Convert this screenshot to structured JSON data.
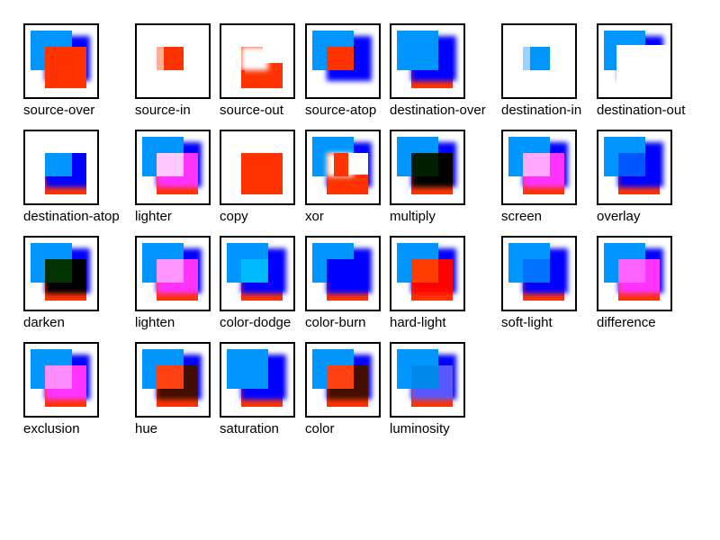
{
  "colors": {
    "blue": "#0095ff",
    "blur_blue": "#0000ff",
    "red": "#ff3300",
    "background": "#ffffff",
    "border": "#000000"
  },
  "operations": [
    {
      "name": "source-over",
      "mode": "normal",
      "clip": "none"
    },
    {
      "name": "source-in",
      "mode": "normal",
      "clip": "source-in"
    },
    {
      "name": "source-out",
      "mode": "normal",
      "clip": "source-out"
    },
    {
      "name": "source-atop",
      "mode": "normal",
      "clip": "source-atop"
    },
    {
      "name": "destination-over",
      "mode": "normal",
      "clip": "destination-over"
    },
    {
      "name": "destination-in",
      "mode": "normal",
      "clip": "destination-in"
    },
    {
      "name": "destination-out",
      "mode": "normal",
      "clip": "destination-out"
    },
    {
      "name": "destination-atop",
      "mode": "normal",
      "clip": "destination-atop"
    },
    {
      "name": "lighter",
      "mode": "plus-lighter",
      "clip": "none"
    },
    {
      "name": "copy",
      "mode": "normal",
      "clip": "copy"
    },
    {
      "name": "xor",
      "mode": "normal",
      "clip": "xor"
    },
    {
      "name": "multiply",
      "mode": "multiply",
      "clip": "none"
    },
    {
      "name": "screen",
      "mode": "screen",
      "clip": "none"
    },
    {
      "name": "overlay",
      "mode": "overlay",
      "clip": "none"
    },
    {
      "name": "darken",
      "mode": "darken",
      "clip": "none"
    },
    {
      "name": "lighten",
      "mode": "lighten",
      "clip": "none"
    },
    {
      "name": "color-dodge",
      "mode": "color-dodge",
      "clip": "none"
    },
    {
      "name": "color-burn",
      "mode": "color-burn",
      "clip": "none"
    },
    {
      "name": "hard-light",
      "mode": "hard-light",
      "clip": "none"
    },
    {
      "name": "soft-light",
      "mode": "soft-light",
      "clip": "none"
    },
    {
      "name": "difference",
      "mode": "difference",
      "clip": "none"
    },
    {
      "name": "exclusion",
      "mode": "exclusion",
      "clip": "none"
    },
    {
      "name": "hue",
      "mode": "hue",
      "clip": "none"
    },
    {
      "name": "saturation",
      "mode": "saturation",
      "clip": "none"
    },
    {
      "name": "color",
      "mode": "color",
      "clip": "none"
    },
    {
      "name": "luminosity",
      "mode": "luminosity",
      "clip": "none"
    }
  ]
}
